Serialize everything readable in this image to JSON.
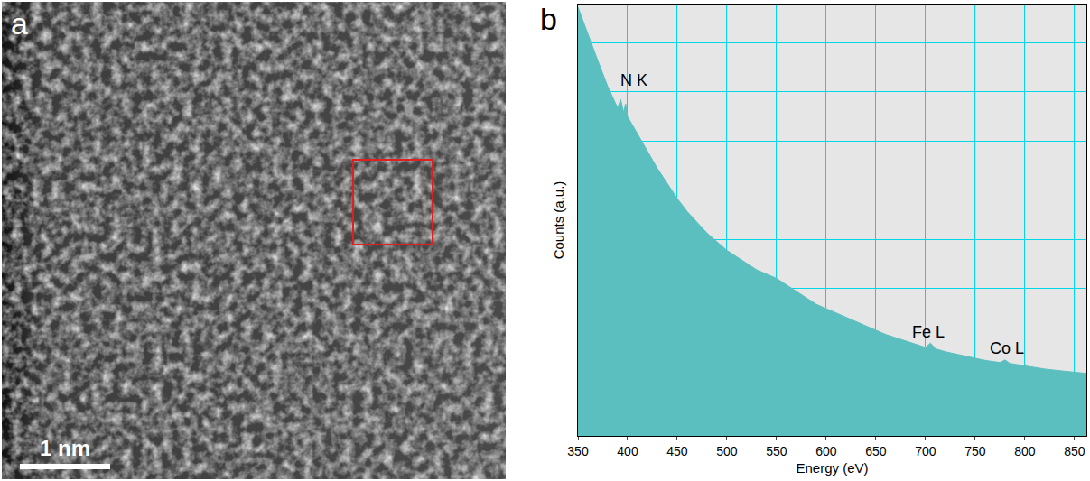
{
  "image_panel": {
    "label": "a",
    "scale_bar": "1 nm"
  },
  "chart_data": {
    "type": "area",
    "panel_label": "b",
    "x_label": "Energy (eV)",
    "y_label": "Counts (a.u.)",
    "x": [
      350,
      360,
      370,
      380,
      390,
      393,
      396,
      398,
      400,
      410,
      420,
      430,
      440,
      450,
      460,
      470,
      480,
      490,
      500,
      510,
      520,
      530,
      540,
      550,
      560,
      570,
      580,
      590,
      600,
      620,
      640,
      660,
      680,
      700,
      705,
      710,
      720,
      740,
      760,
      775,
      780,
      785,
      800,
      820,
      840,
      862
    ],
    "values": [
      99.4,
      93,
      87,
      81,
      76,
      78,
      75,
      77,
      74,
      70,
      66,
      62,
      58.5,
      55,
      52,
      49.5,
      47,
      45,
      43,
      41.5,
      40,
      38.5,
      37.5,
      36.5,
      35,
      33.5,
      32,
      30.5,
      29.5,
      27.5,
      25.5,
      23.5,
      22,
      20.5,
      21.5,
      20.2,
      19.5,
      18.5,
      17.5,
      17,
      17.6,
      16.8,
      16.3,
      15.5,
      15,
      14.5
    ],
    "color": "#5bbfbf",
    "xlim": [
      350,
      862
    ],
    "xticks": [
      350,
      400,
      450,
      500,
      550,
      600,
      650,
      700,
      750,
      800,
      850
    ],
    "ylim": [
      0,
      100
    ],
    "yticks": [
      11.4,
      22.8,
      34.2,
      45.6,
      57,
      68.4,
      79.8,
      91.2
    ],
    "grid": true,
    "tick_labels": "x",
    "annotations": [
      {
        "text": "N K",
        "x": 406,
        "y": 80
      },
      {
        "text": "Fe L",
        "x": 703,
        "y": 21.5
      },
      {
        "text": "Co L",
        "x": 782,
        "y": 17.8
      }
    ]
  }
}
